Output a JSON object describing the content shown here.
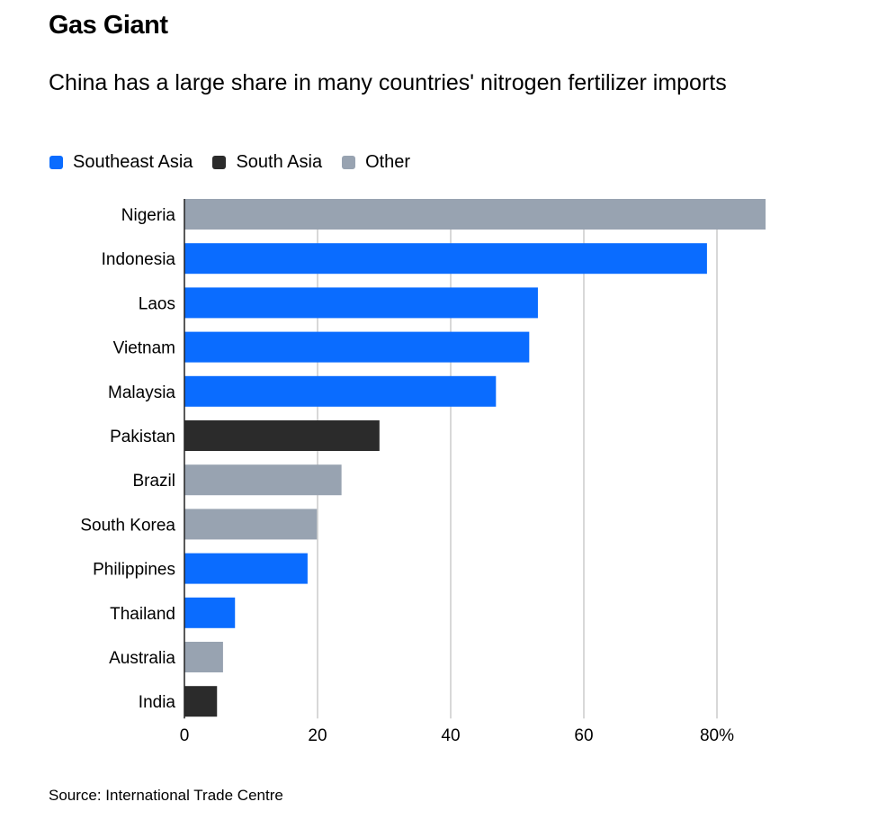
{
  "title": "Gas Giant",
  "subtitle": "China has a large share in many countries' nitrogen fertilizer imports",
  "source": "Source: International Trade Centre",
  "chart_data": {
    "type": "bar",
    "orientation": "horizontal",
    "categories": [
      "Nigeria",
      "Indonesia",
      "Laos",
      "Vietnam",
      "Malaysia",
      "Pakistan",
      "Brazil",
      "South Korea",
      "Philippines",
      "Thailand",
      "Australia",
      "India"
    ],
    "values": [
      87.3,
      78.5,
      53.1,
      51.8,
      46.8,
      29.3,
      23.6,
      19.9,
      18.5,
      7.6,
      5.8,
      4.9
    ],
    "groups": [
      "Other",
      "Southeast Asia",
      "Southeast Asia",
      "Southeast Asia",
      "Southeast Asia",
      "South Asia",
      "Other",
      "Other",
      "Southeast Asia",
      "Southeast Asia",
      "Other",
      "South Asia"
    ],
    "legend": [
      {
        "name": "Southeast Asia",
        "color": "#0a6cff"
      },
      {
        "name": "South Asia",
        "color": "#2b2b2b"
      },
      {
        "name": "Other",
        "color": "#98a3b1"
      }
    ],
    "legend_position": "top-left",
    "xlim": [
      0,
      87.3
    ],
    "xticks": [
      0,
      20,
      40,
      60,
      80
    ],
    "xtick_labels": [
      "0",
      "20",
      "40",
      "60",
      "80%"
    ],
    "grid": true
  }
}
